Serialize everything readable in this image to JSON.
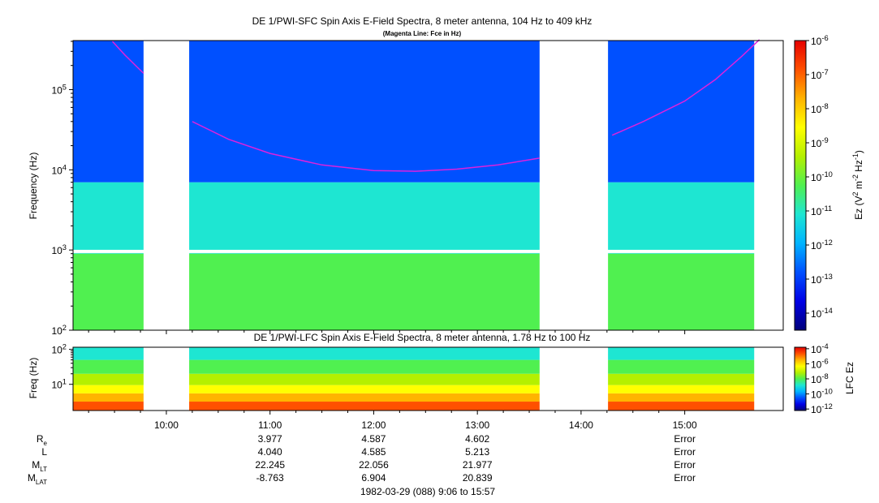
{
  "colors": {
    "cb": [
      "#00007a",
      "#0000e6",
      "#0050ff",
      "#00b4ff",
      "#1ee6d2",
      "#50f050",
      "#b4f000",
      "#ffff00",
      "#ffb400",
      "#ff5000",
      "#e60000"
    ],
    "fce_line": "#dd22dd",
    "axis": "#000000",
    "missing": "#ffffff"
  },
  "chart_data": [
    {
      "id": "sfc",
      "type": "heatmap",
      "title": "DE 1/PWI-SFC  Spin Axis E-Field Spectra, 8 meter antenna, 104 Hz to 409 kHz",
      "subtitle": "(Magenta Line: Fce in Hz)",
      "ylabel": "Frequency (Hz)",
      "yscale": "log",
      "ylim": [
        100,
        409000
      ],
      "yticks": [
        {
          "v": 100,
          "m": "10",
          "e": "2"
        },
        {
          "v": 1000,
          "m": "10",
          "e": "3"
        },
        {
          "v": 10000,
          "m": "10",
          "e": "4"
        },
        {
          "v": 100000,
          "m": "10",
          "e": "5"
        }
      ],
      "xlim_hours": [
        9.1,
        15.95
      ],
      "data_gaps_hours": [
        [
          9.78,
          10.22
        ],
        [
          13.6,
          14.26
        ]
      ],
      "intensity_bands": [
        {
          "from": 100,
          "to": 900,
          "level": 5
        },
        {
          "from": 900,
          "to": 7000,
          "level": 4
        },
        {
          "from": 7000,
          "to": 409000,
          "level": 2
        }
      ],
      "colorbar": {
        "label_base": "Ez (V",
        "label_sup": "2",
        "label_mid": " m",
        "label_sup2": "-2",
        "label_end": " Hz",
        "label_sup3": "-1",
        "label_close": ")",
        "range_exp": [
          -14.5,
          -6
        ],
        "ticks": [
          {
            "v": -6,
            "m": "10",
            "e": "-6"
          },
          {
            "v": -7,
            "m": "10",
            "e": "-7"
          },
          {
            "v": -8,
            "m": "10",
            "e": "-8"
          },
          {
            "v": -9,
            "m": "10",
            "e": "-9"
          },
          {
            "v": -10,
            "m": "10",
            "e": "-10"
          },
          {
            "v": -11,
            "m": "10",
            "e": "-11"
          },
          {
            "v": -12,
            "m": "10",
            "e": "-12"
          },
          {
            "v": -13,
            "m": "10",
            "e": "-13"
          },
          {
            "v": -14,
            "m": "10",
            "e": "-14"
          }
        ]
      },
      "fce_segments": [
        [
          [
            9.48,
            400000
          ],
          [
            9.6,
            270000
          ],
          [
            9.72,
            190000
          ],
          [
            9.78,
            160000
          ]
        ],
        [
          [
            10.25,
            40000
          ],
          [
            10.6,
            24000
          ],
          [
            11.0,
            16000
          ],
          [
            11.5,
            11500
          ],
          [
            12.0,
            9800
          ],
          [
            12.4,
            9600
          ],
          [
            12.8,
            10200
          ],
          [
            13.2,
            11500
          ],
          [
            13.6,
            14000
          ]
        ],
        [
          [
            14.3,
            27000
          ],
          [
            14.6,
            40000
          ],
          [
            15.0,
            72000
          ],
          [
            15.3,
            135000
          ],
          [
            15.55,
            260000
          ],
          [
            15.72,
            420000
          ]
        ]
      ]
    },
    {
      "id": "lfc",
      "type": "heatmap",
      "title": "DE 1/PWI-LFC  Spin Axis E-Field Spectra, 8 meter antenna, 1.78 Hz to 100 Hz",
      "ylabel": "Freq (Hz)",
      "yscale": "log",
      "ylim": [
        1.78,
        115
      ],
      "yticks": [
        {
          "v": 10,
          "m": "10",
          "e": "1"
        },
        {
          "v": 100,
          "m": "10",
          "e": "2"
        }
      ],
      "xlim_hours": [
        9.1,
        15.95
      ],
      "data_gaps_hours": [
        [
          9.78,
          10.22
        ],
        [
          13.6,
          14.26
        ]
      ],
      "intensity_bands": [
        {
          "from": 1.78,
          "to": 3.2,
          "level": 9
        },
        {
          "from": 3.2,
          "to": 5.5,
          "level": 8
        },
        {
          "from": 5.5,
          "to": 9.5,
          "level": 7
        },
        {
          "from": 9.5,
          "to": 20,
          "level": 6
        },
        {
          "from": 20,
          "to": 50,
          "level": 5
        },
        {
          "from": 50,
          "to": 115,
          "level": 4
        }
      ],
      "colorbar": {
        "label": "LFC Ez",
        "range_exp": [
          -12.2,
          -3.8
        ],
        "ticks": [
          {
            "v": -4,
            "m": "10",
            "e": "-4"
          },
          {
            "v": -6,
            "m": "10",
            "e": "-6"
          },
          {
            "v": -8,
            "m": "10",
            "e": "-8"
          },
          {
            "v": -10,
            "m": "10",
            "e": "-10"
          },
          {
            "v": -12,
            "m": "10",
            "e": "-12"
          }
        ]
      },
      "xticks": [
        {
          "h": 10,
          "label": "10:00"
        },
        {
          "h": 11,
          "label": "11:00"
        },
        {
          "h": 12,
          "label": "12:00"
        },
        {
          "h": 13,
          "label": "13:00"
        },
        {
          "h": 14,
          "label": "14:00"
        },
        {
          "h": 15,
          "label": "15:00"
        }
      ]
    }
  ],
  "ephemeris": {
    "rows": [
      {
        "label": "R",
        "sub": "e",
        "values": [
          {
            "h": 11,
            "v": "3.977"
          },
          {
            "h": 12,
            "v": "4.587"
          },
          {
            "h": 13,
            "v": "4.602"
          },
          {
            "h": 15,
            "v": "Error"
          }
        ]
      },
      {
        "label": "L",
        "sub": "",
        "values": [
          {
            "h": 11,
            "v": "4.040"
          },
          {
            "h": 12,
            "v": "4.585"
          },
          {
            "h": 13,
            "v": "5.213"
          },
          {
            "h": 15,
            "v": "Error"
          }
        ]
      },
      {
        "label": "M",
        "sub": "LT",
        "values": [
          {
            "h": 11,
            "v": "22.245"
          },
          {
            "h": 12,
            "v": "22.056"
          },
          {
            "h": 13,
            "v": "21.977"
          },
          {
            "h": 15,
            "v": "Error"
          }
        ]
      },
      {
        "label": "M",
        "sub": "LAT",
        "values": [
          {
            "h": 11,
            "v": "-8.763"
          },
          {
            "h": 12,
            "v": "6.904"
          },
          {
            "h": 13,
            "v": "20.839"
          },
          {
            "h": 15,
            "v": "Error"
          }
        ]
      }
    ],
    "footer": "1982-03-29 (088) 9:06 to 15:57"
  }
}
